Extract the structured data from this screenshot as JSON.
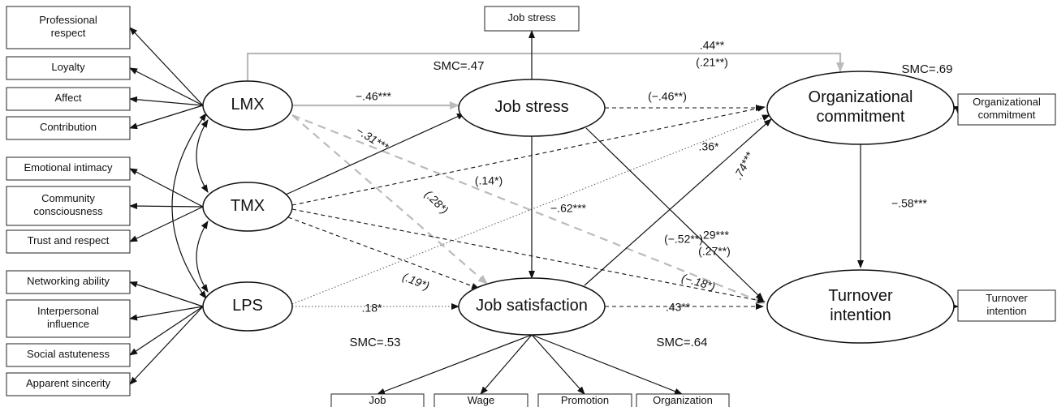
{
  "indicators": [
    [
      "Professional",
      "respect"
    ],
    [
      "Loyalty"
    ],
    [
      "Affect"
    ],
    [
      "Contribution"
    ],
    [
      "Emotional intimacy"
    ],
    [
      "Community",
      "consciousness"
    ],
    [
      "Trust and respect"
    ],
    [
      "Networking ability"
    ],
    [
      "Interpersonal",
      "influence"
    ],
    [
      "Social astuteness"
    ],
    [
      "Apparent sincerity"
    ]
  ],
  "latents": [
    [
      "LMX"
    ],
    [
      "TMX"
    ],
    [
      "LPS"
    ],
    [
      "Job stress"
    ],
    [
      "Job satisfaction"
    ],
    [
      "Organizational",
      "commitment"
    ],
    [
      "Turnover",
      "intention"
    ]
  ],
  "observed": [
    [
      "Job stress"
    ],
    [
      "Organizational",
      "commitment"
    ],
    [
      "Turnover",
      "intention"
    ],
    [
      "Job"
    ],
    [
      "Wage"
    ],
    [
      "Promotion"
    ],
    [
      "Organization"
    ]
  ],
  "path_labels": [
    ".44**",
    "(.21**)",
    "−.46***",
    "(−.46**)",
    "−.31***",
    "(.14*)",
    ".36*",
    ".74***",
    "(.28*)",
    "−.62***",
    "−.58***",
    "(−.52**)",
    ".29***",
    "(.27**)",
    "(.19*)",
    "(−.18*)",
    ".18*",
    ".43**"
  ],
  "smc": [
    "SMC=.47",
    "SMC=.53",
    "SMC=.64",
    "SMC=.69"
  ]
}
